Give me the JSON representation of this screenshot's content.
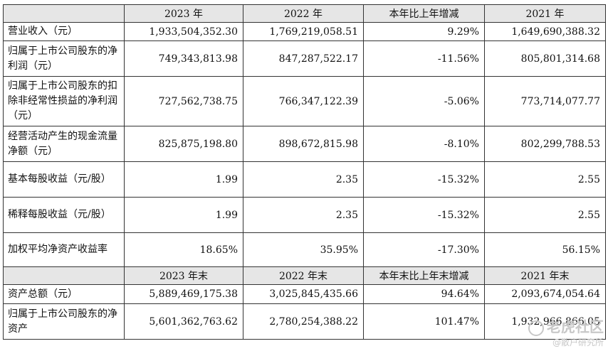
{
  "header1": [
    "2023 年",
    "2022 年",
    "本年比上年增减",
    "2021 年"
  ],
  "rows1": [
    {
      "label": "营业收入（元）",
      "values": [
        "1,933,504,352.30",
        "1,769,219,058.51",
        "9.29%",
        "1,649,690,388.32"
      ]
    },
    {
      "label": "归属于上市公司股东的净利润（元）",
      "values": [
        "749,343,813.98",
        "847,287,522.17",
        "-11.56%",
        "805,801,314.68"
      ]
    },
    {
      "label": "归属于上市公司股东的扣除非经常性损益的净利润（元）",
      "values": [
        "727,562,738.75",
        "766,347,122.39",
        "-5.06%",
        "773,714,077.77"
      ]
    },
    {
      "label": "经营活动产生的现金流量净额（元）",
      "values": [
        "825,875,198.80",
        "898,672,815.98",
        "-8.10%",
        "802,299,788.53"
      ]
    },
    {
      "label": "基本每股收益（元/股）",
      "values": [
        "1.99",
        "2.35",
        "-15.32%",
        "2.55"
      ]
    },
    {
      "label": "稀释每股收益（元/股）",
      "values": [
        "1.99",
        "2.35",
        "-15.32%",
        "2.55"
      ]
    },
    {
      "label": "加权平均净资产收益率",
      "values": [
        "18.65%",
        "35.95%",
        "-17.30%",
        "56.15%"
      ]
    }
  ],
  "header2": [
    "2023 年末",
    "2022 年末",
    "本年末比上年末增减",
    "2021 年末"
  ],
  "rows2": [
    {
      "label": "资产总额（元）",
      "values": [
        "5,889,469,175.38",
        "3,025,845,435.66",
        "94.64%",
        "2,093,674,054.64"
      ]
    },
    {
      "label": "归属于上市公司股东的净资产",
      "values": [
        "5,601,362,763.62",
        "2,780,254,388.22",
        "101.47%",
        "1,932,966,866.05"
      ]
    }
  ],
  "watermark": {
    "main": "老虎社区",
    "sub": "@散户研究所"
  }
}
